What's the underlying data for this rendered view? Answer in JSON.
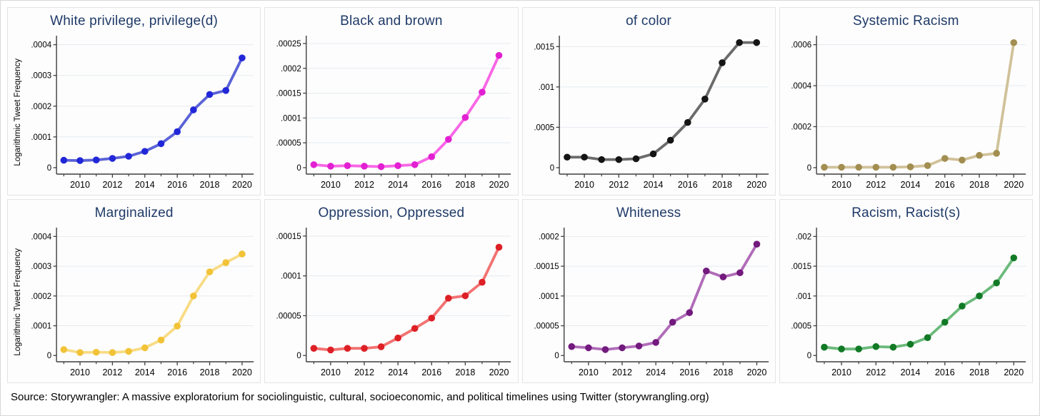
{
  "page": {
    "source_note": "Source: Storywrangler: A massive exploratorium for sociolinguistic, cultural, socioeconomic, and political timelines using Twitter (storywrangling.org)"
  },
  "axis": {
    "ylabel": "Logarithmic Tweet Frequency",
    "x_ticks_labeled": [
      2010,
      2012,
      2014,
      2016,
      2018,
      2020
    ],
    "x_ticks_minor": [
      2009,
      2011,
      2013,
      2015,
      2017,
      2019
    ],
    "x_range": [
      2008.55,
      2020.45
    ],
    "grid": true,
    "legend": "none"
  },
  "style": {
    "title_color": "#1f3a68",
    "grid_color": "#e6ebf1",
    "axis_color": "#3f3f3f",
    "tick_text_color": "#000000",
    "panel_bg": "#fdfdfd"
  },
  "chart_data": [
    {
      "type": "line",
      "title": "White privilege, privilege(d)",
      "xlabel": "",
      "ylabel": "Logarithmic Tweet Frequency",
      "x": [
        2009,
        2010,
        2011,
        2012,
        2013,
        2014,
        2015,
        2016,
        2017,
        2018,
        2019,
        2020
      ],
      "values": [
        2.4e-05,
        2.3e-05,
        2.5e-05,
        3e-05,
        3.7e-05,
        5.3e-05,
        7.8e-05,
        0.000117,
        0.000188,
        0.000238,
        0.000251,
        0.000357
      ],
      "ylim": [
        0,
        0.00042
      ],
      "ytick_values": [
        0,
        0.0001,
        0.0002,
        0.0003,
        0.0004
      ],
      "ytick_labels": [
        "0",
        ".0001",
        ".0002",
        ".0003",
        ".0004"
      ],
      "line_color": "#5b63d6",
      "marker_color": "#2127d8",
      "has_ylabel": true
    },
    {
      "type": "line",
      "title": "Black and brown",
      "xlabel": "",
      "ylabel": "",
      "x": [
        2009,
        2010,
        2011,
        2012,
        2013,
        2014,
        2015,
        2016,
        2017,
        2018,
        2019,
        2020
      ],
      "values": [
        6e-06,
        3e-06,
        4e-06,
        3e-06,
        2e-06,
        4e-06,
        6e-06,
        2.2e-05,
        5.7e-05,
        0.000101,
        0.000152,
        0.000226
      ],
      "ylim": [
        0,
        0.00026
      ],
      "ytick_values": [
        0,
        5e-05,
        0.0001,
        0.00015,
        0.0002,
        0.00025
      ],
      "ytick_labels": [
        "0",
        ".00005",
        ".0001",
        ".00015",
        ".0002",
        ".00025"
      ],
      "line_color": "#f966e6",
      "marker_color": "#e220d2",
      "has_ylabel": false
    },
    {
      "type": "line",
      "title": "of color",
      "xlabel": "",
      "ylabel": "",
      "x": [
        2009,
        2010,
        2011,
        2012,
        2013,
        2014,
        2015,
        2016,
        2017,
        2018,
        2019,
        2020
      ],
      "values": [
        0.00013,
        0.00013,
        0.0001,
        0.0001,
        0.00011,
        0.00017,
        0.00034,
        0.00056,
        0.00085,
        0.0013,
        0.00155,
        0.00155
      ],
      "ylim": [
        0,
        0.0016
      ],
      "ytick_values": [
        0,
        0.0005,
        0.001,
        0.0015
      ],
      "ytick_labels": [
        "0",
        ".0005",
        ".001",
        ".0015"
      ],
      "line_color": "#6b6b6b",
      "marker_color": "#141414",
      "has_ylabel": false
    },
    {
      "type": "line",
      "title": "Systemic Racism",
      "xlabel": "",
      "ylabel": "",
      "x": [
        2009,
        2010,
        2011,
        2012,
        2013,
        2014,
        2015,
        2016,
        2017,
        2018,
        2019,
        2020
      ],
      "values": [
        2e-06,
        2e-06,
        2e-06,
        2e-06,
        2e-06,
        4e-06,
        1e-05,
        4.5e-05,
        3.7e-05,
        6e-05,
        7e-05,
        0.00061
      ],
      "ylim": [
        0,
        0.00063
      ],
      "ytick_values": [
        0,
        0.0002,
        0.0004,
        0.0006
      ],
      "ytick_labels": [
        "0",
        ".0002",
        ".0004",
        ".0006"
      ],
      "line_color": "#d0c29a",
      "marker_color": "#a28e50",
      "has_ylabel": false
    },
    {
      "type": "line",
      "title": "Marginalized",
      "xlabel": "",
      "ylabel": "Logarithmic Tweet Frequency",
      "x": [
        2009,
        2010,
        2011,
        2012,
        2013,
        2014,
        2015,
        2016,
        2017,
        2018,
        2019,
        2020
      ],
      "values": [
        2e-05,
        1e-05,
        1.1e-05,
        1e-05,
        1.4e-05,
        2.6e-05,
        5.2e-05,
        9.9e-05,
        0.0002,
        0.000281,
        0.000312,
        0.000341
      ],
      "ylim": [
        0,
        0.00042
      ],
      "ytick_values": [
        0,
        0.0001,
        0.0002,
        0.0003,
        0.0004
      ],
      "ytick_labels": [
        "0",
        ".0001",
        ".0002",
        ".0003",
        ".0004"
      ],
      "line_color": "#f8dc85",
      "marker_color": "#f2c337",
      "has_ylabel": true
    },
    {
      "type": "line",
      "title": "Oppression, Oppressed",
      "xlabel": "",
      "ylabel": "",
      "x": [
        2009,
        2010,
        2011,
        2012,
        2013,
        2014,
        2015,
        2016,
        2017,
        2018,
        2019,
        2020
      ],
      "values": [
        9e-06,
        7e-06,
        9e-06,
        9e-06,
        1.1e-05,
        2.2e-05,
        3.4e-05,
        4.7e-05,
        7.2e-05,
        7.5e-05,
        9.2e-05,
        0.000136
      ],
      "ylim": [
        0,
        0.000157
      ],
      "ytick_values": [
        0,
        5e-05,
        0.0001,
        0.00015
      ],
      "ytick_labels": [
        "0",
        ".00005",
        ".0001",
        ".00015"
      ],
      "line_color": "#f37272",
      "marker_color": "#dd2026",
      "has_ylabel": false
    },
    {
      "type": "line",
      "title": "Whiteness",
      "xlabel": "",
      "ylabel": "",
      "x": [
        2009,
        2010,
        2011,
        2012,
        2013,
        2014,
        2015,
        2016,
        2017,
        2018,
        2019,
        2020
      ],
      "values": [
        1.5e-05,
        1.3e-05,
        1e-05,
        1.3e-05,
        1.6e-05,
        2.2e-05,
        5.6e-05,
        7.2e-05,
        0.000142,
        0.000132,
        0.000139,
        0.000187
      ],
      "ylim": [
        0,
        0.00021
      ],
      "ytick_values": [
        0,
        5e-05,
        0.0001,
        0.00015,
        0.0002
      ],
      "ytick_labels": [
        "0",
        ".00005",
        ".0001",
        ".00015",
        ".0002"
      ],
      "line_color": "#b06cb8",
      "marker_color": "#731a7e",
      "has_ylabel": false
    },
    {
      "type": "line",
      "title": "Racism, Racist(s)",
      "xlabel": "",
      "ylabel": "",
      "x": [
        2009,
        2010,
        2011,
        2012,
        2013,
        2014,
        2015,
        2016,
        2017,
        2018,
        2019,
        2020
      ],
      "values": [
        0.00014,
        0.00011,
        0.00011,
        0.00015,
        0.00014,
        0.00019,
        0.0003,
        0.00056,
        0.00083,
        0.001,
        0.00122,
        0.00164
      ],
      "ylim": [
        0,
        0.0021
      ],
      "ytick_values": [
        0,
        0.0005,
        0.001,
        0.0015,
        0.002
      ],
      "ytick_labels": [
        "0",
        ".0005",
        ".001",
        ".0015",
        ".002"
      ],
      "line_color": "#6cba7c",
      "marker_color": "#127a26",
      "has_ylabel": false
    }
  ]
}
